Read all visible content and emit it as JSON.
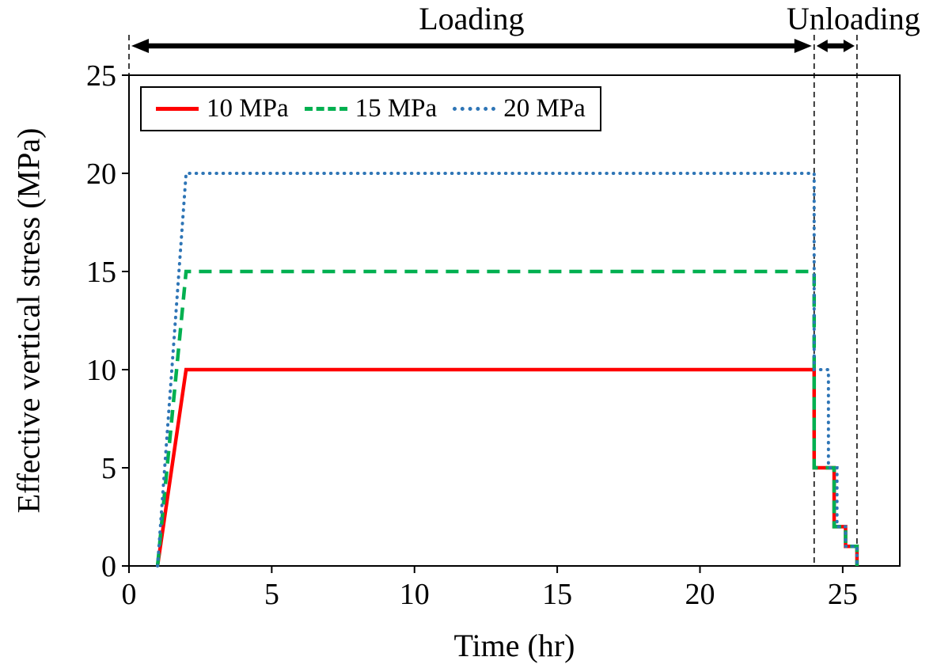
{
  "chart_data": {
    "type": "line",
    "title": "",
    "xlabel": "Time (hr)",
    "ylabel": "Effective vertical stress (MPa)",
    "xlim": [
      0,
      27
    ],
    "ylim": [
      0,
      25
    ],
    "xticks": [
      0,
      5,
      10,
      15,
      20,
      25
    ],
    "yticks": [
      0,
      5,
      10,
      15,
      20,
      25
    ],
    "grid": false,
    "legend_position": "top-left-inside",
    "annotations": {
      "loading_label": "Loading",
      "unloading_label": "Unloading",
      "loading_span": [
        0,
        24
      ],
      "unloading_span": [
        24,
        25.5
      ],
      "dashed_lines_x": [
        0,
        24,
        25.5
      ]
    },
    "series": [
      {
        "name": "10 MPa",
        "color": "#ff0000",
        "style": "solid",
        "points": [
          [
            1,
            0
          ],
          [
            2,
            10
          ],
          [
            24,
            10
          ],
          [
            24,
            5
          ],
          [
            24.7,
            5
          ],
          [
            24.7,
            2
          ],
          [
            25.1,
            2
          ],
          [
            25.1,
            1
          ],
          [
            25.5,
            1
          ],
          [
            25.5,
            0
          ]
        ]
      },
      {
        "name": "15 MPa",
        "color": "#00b050",
        "style": "dashed",
        "points": [
          [
            1,
            0
          ],
          [
            2,
            15
          ],
          [
            24,
            15
          ],
          [
            24,
            5
          ],
          [
            24.7,
            5
          ],
          [
            24.7,
            2
          ],
          [
            25.1,
            2
          ],
          [
            25.1,
            1
          ],
          [
            25.5,
            1
          ],
          [
            25.5,
            0
          ]
        ]
      },
      {
        "name": "20 MPa",
        "color": "#2e75b6",
        "style": "dotted",
        "points": [
          [
            1,
            0
          ],
          [
            2,
            20
          ],
          [
            24,
            20
          ],
          [
            24,
            10
          ],
          [
            24.5,
            10
          ],
          [
            24.5,
            5
          ],
          [
            24.8,
            5
          ],
          [
            24.8,
            2
          ],
          [
            25.1,
            2
          ],
          [
            25.1,
            1
          ],
          [
            25.5,
            1
          ],
          [
            25.5,
            0
          ]
        ]
      }
    ]
  }
}
